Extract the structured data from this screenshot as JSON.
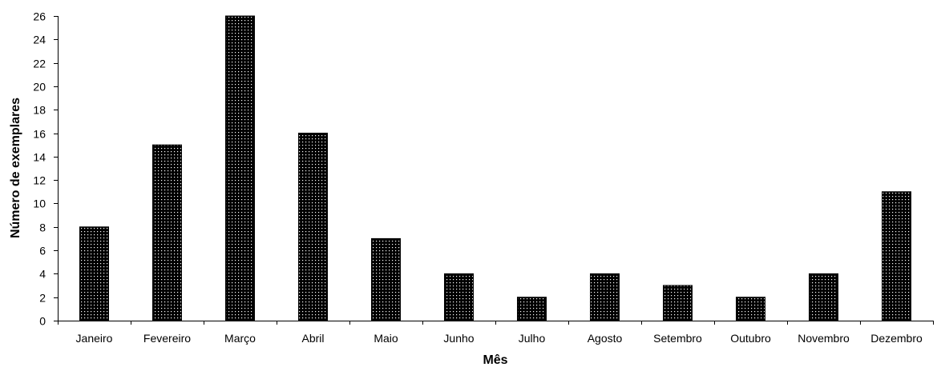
{
  "chart_data": {
    "type": "bar",
    "title": "",
    "xlabel": "Mês",
    "ylabel": "Número de exemplares",
    "categories": [
      "Janeiro",
      "Fevereiro",
      "Março",
      "Abril",
      "Maio",
      "Junho",
      "Julho",
      "Agosto",
      "Setembro",
      "Outubro",
      "Novembro",
      "Dezembro"
    ],
    "values": [
      8,
      15,
      26,
      16,
      7,
      4,
      2,
      4,
      3,
      2,
      4,
      11
    ],
    "ylim": [
      0,
      26
    ],
    "yticks": [
      "0",
      "2",
      "4",
      "6",
      "8",
      "10",
      "12",
      "14",
      "16",
      "18",
      "20",
      "22",
      "24",
      "26"
    ],
    "grid": false,
    "legend": "none",
    "bar_fill": "dotted-black-pattern",
    "colors": {
      "bar": "#000000",
      "dot": "#ffffff",
      "axis": "#000000",
      "background": "#ffffff"
    }
  }
}
